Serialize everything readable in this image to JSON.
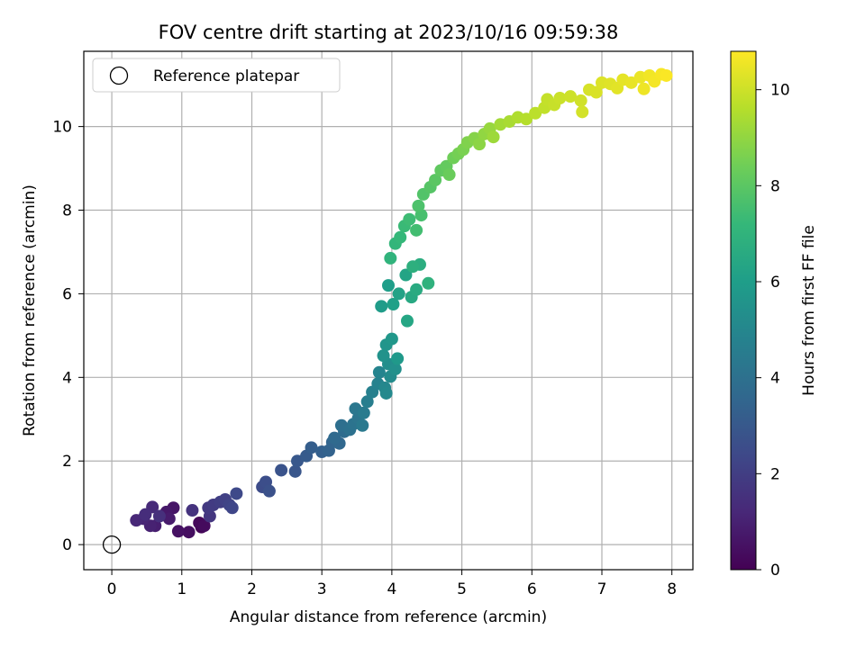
{
  "chart_data": {
    "type": "scatter",
    "title": "FOV centre drift starting at 2023/10/16 09:59:38",
    "xlabel": "Angular distance from reference (arcmin)",
    "ylabel": "Rotation from reference (arcmin)",
    "xlim": [
      -0.4,
      8.3
    ],
    "ylim": [
      -0.6,
      11.8
    ],
    "xticks": [
      "0",
      "1",
      "2",
      "3",
      "4",
      "5",
      "6",
      "7",
      "8"
    ],
    "yticks": [
      "0",
      "2",
      "4",
      "6",
      "8",
      "10"
    ],
    "grid": true,
    "colormap": "viridis",
    "colorbar": {
      "label": "Hours from first FF file",
      "range": [
        0,
        10.8
      ],
      "ticks": [
        "0",
        "2",
        "4",
        "6",
        "8",
        "10"
      ]
    },
    "legend": {
      "placement": "top-left",
      "entries": [
        {
          "label": "Reference platepar",
          "marker": "open-circle"
        }
      ]
    },
    "reference_point": {
      "x": 0,
      "y": 0
    },
    "series": [
      {
        "color_by": "hours",
        "points": [
          {
            "x": 1.28,
            "y": 0.42,
            "h": 0.1
          },
          {
            "x": 1.25,
            "y": 0.52,
            "h": 0.2
          },
          {
            "x": 1.32,
            "y": 0.45,
            "h": 0.3
          },
          {
            "x": 1.1,
            "y": 0.3,
            "h": 0.4
          },
          {
            "x": 0.95,
            "y": 0.32,
            "h": 0.5
          },
          {
            "x": 0.88,
            "y": 0.88,
            "h": 0.6
          },
          {
            "x": 0.78,
            "y": 0.78,
            "h": 0.7
          },
          {
            "x": 0.82,
            "y": 0.62,
            "h": 0.8
          },
          {
            "x": 0.62,
            "y": 0.45,
            "h": 0.9
          },
          {
            "x": 0.55,
            "y": 0.45,
            "h": 1.0
          },
          {
            "x": 0.45,
            "y": 0.62,
            "h": 1.1
          },
          {
            "x": 0.35,
            "y": 0.58,
            "h": 1.2
          },
          {
            "x": 0.58,
            "y": 0.9,
            "h": 1.3
          },
          {
            "x": 0.48,
            "y": 0.72,
            "h": 1.4
          },
          {
            "x": 0.68,
            "y": 0.68,
            "h": 1.5
          },
          {
            "x": 1.15,
            "y": 0.82,
            "h": 1.6
          },
          {
            "x": 1.4,
            "y": 0.68,
            "h": 1.7
          },
          {
            "x": 1.38,
            "y": 0.88,
            "h": 1.8
          },
          {
            "x": 1.45,
            "y": 0.95,
            "h": 1.9
          },
          {
            "x": 1.55,
            "y": 1.02,
            "h": 2.0
          },
          {
            "x": 1.62,
            "y": 1.08,
            "h": 2.1
          },
          {
            "x": 1.68,
            "y": 0.95,
            "h": 2.2
          },
          {
            "x": 1.72,
            "y": 0.88,
            "h": 2.3
          },
          {
            "x": 1.78,
            "y": 1.22,
            "h": 2.4
          },
          {
            "x": 2.15,
            "y": 1.38,
            "h": 2.5
          },
          {
            "x": 2.2,
            "y": 1.5,
            "h": 2.6
          },
          {
            "x": 2.25,
            "y": 1.28,
            "h": 2.7
          },
          {
            "x": 2.42,
            "y": 1.78,
            "h": 2.8
          },
          {
            "x": 2.62,
            "y": 1.75,
            "h": 2.9
          },
          {
            "x": 2.65,
            "y": 2.0,
            "h": 3.0
          },
          {
            "x": 2.78,
            "y": 2.12,
            "h": 3.1
          },
          {
            "x": 2.85,
            "y": 2.32,
            "h": 3.2
          },
          {
            "x": 3.0,
            "y": 2.22,
            "h": 3.3
          },
          {
            "x": 3.1,
            "y": 2.25,
            "h": 3.4
          },
          {
            "x": 3.15,
            "y": 2.45,
            "h": 3.5
          },
          {
            "x": 3.25,
            "y": 2.42,
            "h": 3.6
          },
          {
            "x": 3.18,
            "y": 2.55,
            "h": 3.7
          },
          {
            "x": 3.32,
            "y": 2.7,
            "h": 3.8
          },
          {
            "x": 3.28,
            "y": 2.85,
            "h": 3.9
          },
          {
            "x": 3.4,
            "y": 2.75,
            "h": 4.0
          },
          {
            "x": 3.45,
            "y": 2.88,
            "h": 4.1
          },
          {
            "x": 3.52,
            "y": 3.02,
            "h": 4.2
          },
          {
            "x": 3.48,
            "y": 3.25,
            "h": 4.3
          },
          {
            "x": 3.58,
            "y": 2.85,
            "h": 4.4
          },
          {
            "x": 3.6,
            "y": 3.15,
            "h": 4.5
          },
          {
            "x": 3.65,
            "y": 3.42,
            "h": 4.6
          },
          {
            "x": 3.72,
            "y": 3.65,
            "h": 4.7
          },
          {
            "x": 3.8,
            "y": 3.85,
            "h": 4.8
          },
          {
            "x": 3.82,
            "y": 4.12,
            "h": 4.9
          },
          {
            "x": 3.9,
            "y": 3.75,
            "h": 5.0
          },
          {
            "x": 3.92,
            "y": 3.62,
            "h": 5.1
          },
          {
            "x": 3.98,
            "y": 4.02,
            "h": 5.2
          },
          {
            "x": 3.95,
            "y": 4.32,
            "h": 5.3
          },
          {
            "x": 4.05,
            "y": 4.2,
            "h": 5.4
          },
          {
            "x": 3.88,
            "y": 4.52,
            "h": 5.5
          },
          {
            "x": 3.92,
            "y": 4.78,
            "h": 5.6
          },
          {
            "x": 4.0,
            "y": 4.92,
            "h": 5.7
          },
          {
            "x": 4.08,
            "y": 4.45,
            "h": 5.8
          },
          {
            "x": 3.85,
            "y": 5.7,
            "h": 5.9
          },
          {
            "x": 3.95,
            "y": 6.2,
            "h": 6.0
          },
          {
            "x": 4.02,
            "y": 5.75,
            "h": 6.1
          },
          {
            "x": 4.1,
            "y": 6.0,
            "h": 6.2
          },
          {
            "x": 4.2,
            "y": 6.45,
            "h": 6.3
          },
          {
            "x": 4.22,
            "y": 5.35,
            "h": 6.4
          },
          {
            "x": 4.28,
            "y": 5.92,
            "h": 6.5
          },
          {
            "x": 4.35,
            "y": 6.1,
            "h": 6.6
          },
          {
            "x": 4.4,
            "y": 6.7,
            "h": 6.7
          },
          {
            "x": 4.3,
            "y": 6.65,
            "h": 6.8
          },
          {
            "x": 4.52,
            "y": 6.25,
            "h": 6.9
          },
          {
            "x": 3.98,
            "y": 6.85,
            "h": 7.0
          },
          {
            "x": 4.05,
            "y": 7.2,
            "h": 7.1
          },
          {
            "x": 4.12,
            "y": 7.35,
            "h": 7.2
          },
          {
            "x": 4.18,
            "y": 7.62,
            "h": 7.3
          },
          {
            "x": 4.25,
            "y": 7.78,
            "h": 7.4
          },
          {
            "x": 4.35,
            "y": 7.52,
            "h": 7.5
          },
          {
            "x": 4.42,
            "y": 7.88,
            "h": 7.6
          },
          {
            "x": 4.38,
            "y": 8.1,
            "h": 7.7
          },
          {
            "x": 4.45,
            "y": 8.38,
            "h": 7.8
          },
          {
            "x": 4.55,
            "y": 8.55,
            "h": 7.9
          },
          {
            "x": 4.62,
            "y": 8.72,
            "h": 8.0
          },
          {
            "x": 4.7,
            "y": 8.95,
            "h": 8.1
          },
          {
            "x": 4.78,
            "y": 9.05,
            "h": 8.2
          },
          {
            "x": 4.82,
            "y": 8.85,
            "h": 8.3
          },
          {
            "x": 4.88,
            "y": 9.25,
            "h": 8.4
          },
          {
            "x": 4.95,
            "y": 9.35,
            "h": 8.5
          },
          {
            "x": 5.02,
            "y": 9.45,
            "h": 8.6
          },
          {
            "x": 5.08,
            "y": 9.62,
            "h": 8.7
          },
          {
            "x": 5.18,
            "y": 9.72,
            "h": 8.8
          },
          {
            "x": 5.25,
            "y": 9.58,
            "h": 8.9
          },
          {
            "x": 5.32,
            "y": 9.82,
            "h": 9.0
          },
          {
            "x": 5.4,
            "y": 9.95,
            "h": 9.1
          },
          {
            "x": 5.45,
            "y": 9.75,
            "h": 9.2
          },
          {
            "x": 5.55,
            "y": 10.05,
            "h": 9.3
          },
          {
            "x": 5.68,
            "y": 10.12,
            "h": 9.4
          },
          {
            "x": 5.8,
            "y": 10.22,
            "h": 9.5
          },
          {
            "x": 5.92,
            "y": 10.18,
            "h": 9.6
          },
          {
            "x": 6.05,
            "y": 10.32,
            "h": 9.7
          },
          {
            "x": 6.18,
            "y": 10.45,
            "h": 9.8
          },
          {
            "x": 6.22,
            "y": 10.65,
            "h": 9.85
          },
          {
            "x": 6.32,
            "y": 10.52,
            "h": 9.9
          },
          {
            "x": 6.4,
            "y": 10.68,
            "h": 9.95
          },
          {
            "x": 6.55,
            "y": 10.72,
            "h": 10.0
          },
          {
            "x": 6.7,
            "y": 10.62,
            "h": 10.05
          },
          {
            "x": 6.72,
            "y": 10.35,
            "h": 10.1
          },
          {
            "x": 6.82,
            "y": 10.88,
            "h": 10.15
          },
          {
            "x": 6.92,
            "y": 10.82,
            "h": 10.2
          },
          {
            "x": 7.0,
            "y": 11.05,
            "h": 10.25
          },
          {
            "x": 7.12,
            "y": 11.02,
            "h": 10.3
          },
          {
            "x": 7.22,
            "y": 10.92,
            "h": 10.35
          },
          {
            "x": 7.3,
            "y": 11.12,
            "h": 10.4
          },
          {
            "x": 7.42,
            "y": 11.05,
            "h": 10.45
          },
          {
            "x": 7.55,
            "y": 11.18,
            "h": 10.5
          },
          {
            "x": 7.6,
            "y": 10.9,
            "h": 10.55
          },
          {
            "x": 7.68,
            "y": 11.22,
            "h": 10.6
          },
          {
            "x": 7.75,
            "y": 11.08,
            "h": 10.65
          },
          {
            "x": 7.85,
            "y": 11.25,
            "h": 10.7
          },
          {
            "x": 7.92,
            "y": 11.22,
            "h": 10.75
          }
        ]
      }
    ]
  },
  "colors": {
    "viridis": [
      "#440154",
      "#482878",
      "#3e4989",
      "#31688e",
      "#26828e",
      "#1f9e89",
      "#35b779",
      "#6ece58",
      "#b5de2b",
      "#fde725"
    ],
    "grid": "#b0b0b0",
    "axes": "#000000"
  }
}
